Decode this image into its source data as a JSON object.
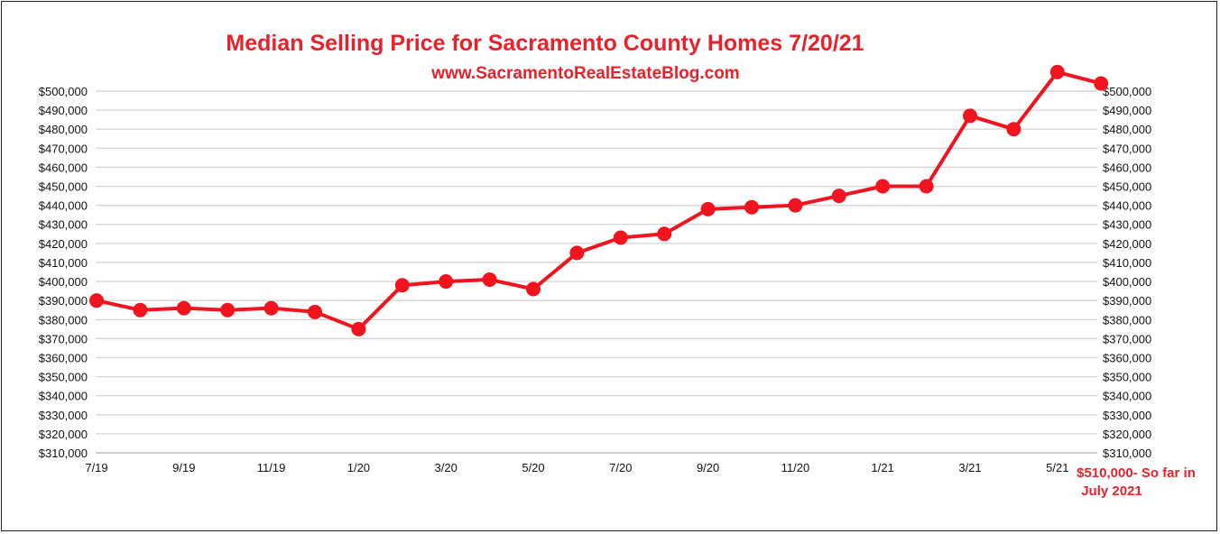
{
  "chart_data": {
    "type": "line",
    "title": "Median Selling Price for Sacramento County Homes 7/20/21",
    "subtitle": "www.SacramentoRealEstateBlog.com",
    "ylim": [
      310000,
      500000
    ],
    "ytick_labels": [
      "$500,000",
      "$490,000",
      "$480,000",
      "$470,000",
      "$460,000",
      "$450,000",
      "$440,000",
      "$430,000",
      "$420,000",
      "$410,000",
      "$400,000",
      "$390,000",
      "$380,000",
      "$370,000",
      "$360,000",
      "$350,000",
      "$340,000",
      "$330,000",
      "$320,000",
      "$310,000"
    ],
    "xtick_labels": [
      {
        "label": "7/19",
        "x": 0
      },
      {
        "label": "9/19",
        "x": 2
      },
      {
        "label": "11/19",
        "x": 4
      },
      {
        "label": "1/20",
        "x": 6
      },
      {
        "label": "3/20",
        "x": 8
      },
      {
        "label": "5/20",
        "x": 10
      },
      {
        "label": "7/20",
        "x": 12
      },
      {
        "label": "9/20",
        "x": 14
      },
      {
        "label": "11/20",
        "x": 16
      },
      {
        "label": "1/21",
        "x": 18
      },
      {
        "label": "3/21",
        "x": 20
      },
      {
        "label": "5/21",
        "x": 22
      }
    ],
    "series": [
      {
        "color": "#f0141e",
        "points": [
          {
            "x": 0,
            "y": 390000
          },
          {
            "x": 1,
            "y": 385000
          },
          {
            "x": 2,
            "y": 386000
          },
          {
            "x": 3,
            "y": 385000
          },
          {
            "x": 4,
            "y": 386000
          },
          {
            "x": 5,
            "y": 384000
          },
          {
            "x": 6,
            "y": 375000
          },
          {
            "x": 7,
            "y": 398000
          },
          {
            "x": 8,
            "y": 400000
          },
          {
            "x": 9,
            "y": 401000
          },
          {
            "x": 10,
            "y": 396000
          },
          {
            "x": 11,
            "y": 415000
          },
          {
            "x": 12,
            "y": 423000
          },
          {
            "x": 13,
            "y": 425000
          },
          {
            "x": 14,
            "y": 438000
          },
          {
            "x": 15,
            "y": 439000
          },
          {
            "x": 16,
            "y": 440000
          },
          {
            "x": 17,
            "y": 445000
          },
          {
            "x": 18,
            "y": 450000
          },
          {
            "x": 19,
            "y": 450000
          },
          {
            "x": 20,
            "y": 487000
          },
          {
            "x": 21,
            "y": 480000
          },
          {
            "x": 22,
            "y": 510000
          },
          {
            "x": 23,
            "y": 504000
          }
        ]
      }
    ],
    "annotation": {
      "line1": "$510,000- So far in",
      "line2": "July 2021"
    },
    "grid": true
  }
}
